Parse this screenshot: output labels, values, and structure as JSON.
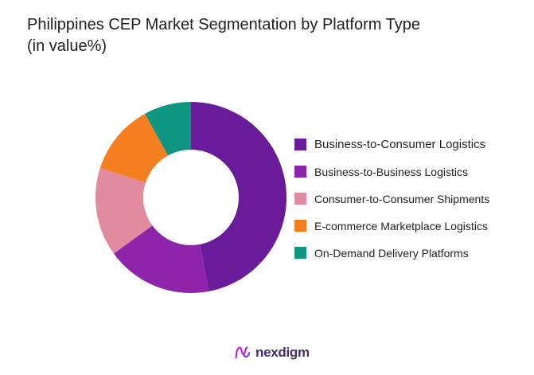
{
  "title": {
    "line1": "Philippines CEP Market Segmentation by Platform Type",
    "line2": "(in value%)"
  },
  "chart_data": {
    "type": "pie",
    "style": "donut",
    "title": "Philippines CEP Market Segmentation by Platform Type (in value%)",
    "legend_position": "right",
    "start_angle_deg": 0,
    "direction": "clockwise",
    "series": [
      {
        "name": "Business-to-Consumer Logistics",
        "value": 47,
        "color": "#6a1b9a"
      },
      {
        "name": "Business-to-Business Logistics",
        "value": 18,
        "color": "#8e24aa"
      },
      {
        "name": "Consumer-to-Consumer Shipments",
        "value": 15,
        "color": "#e08ba0"
      },
      {
        "name": "E-commerce Marketplace Logistics",
        "value": 12,
        "color": "#f57f20"
      },
      {
        "name": "On-Demand Delivery Platforms",
        "value": 8,
        "color": "#0f9680"
      }
    ]
  },
  "brand": {
    "name": "nexdigm",
    "logo_icon": "nexdigm-logo-icon",
    "color": "#4a2a6a"
  }
}
